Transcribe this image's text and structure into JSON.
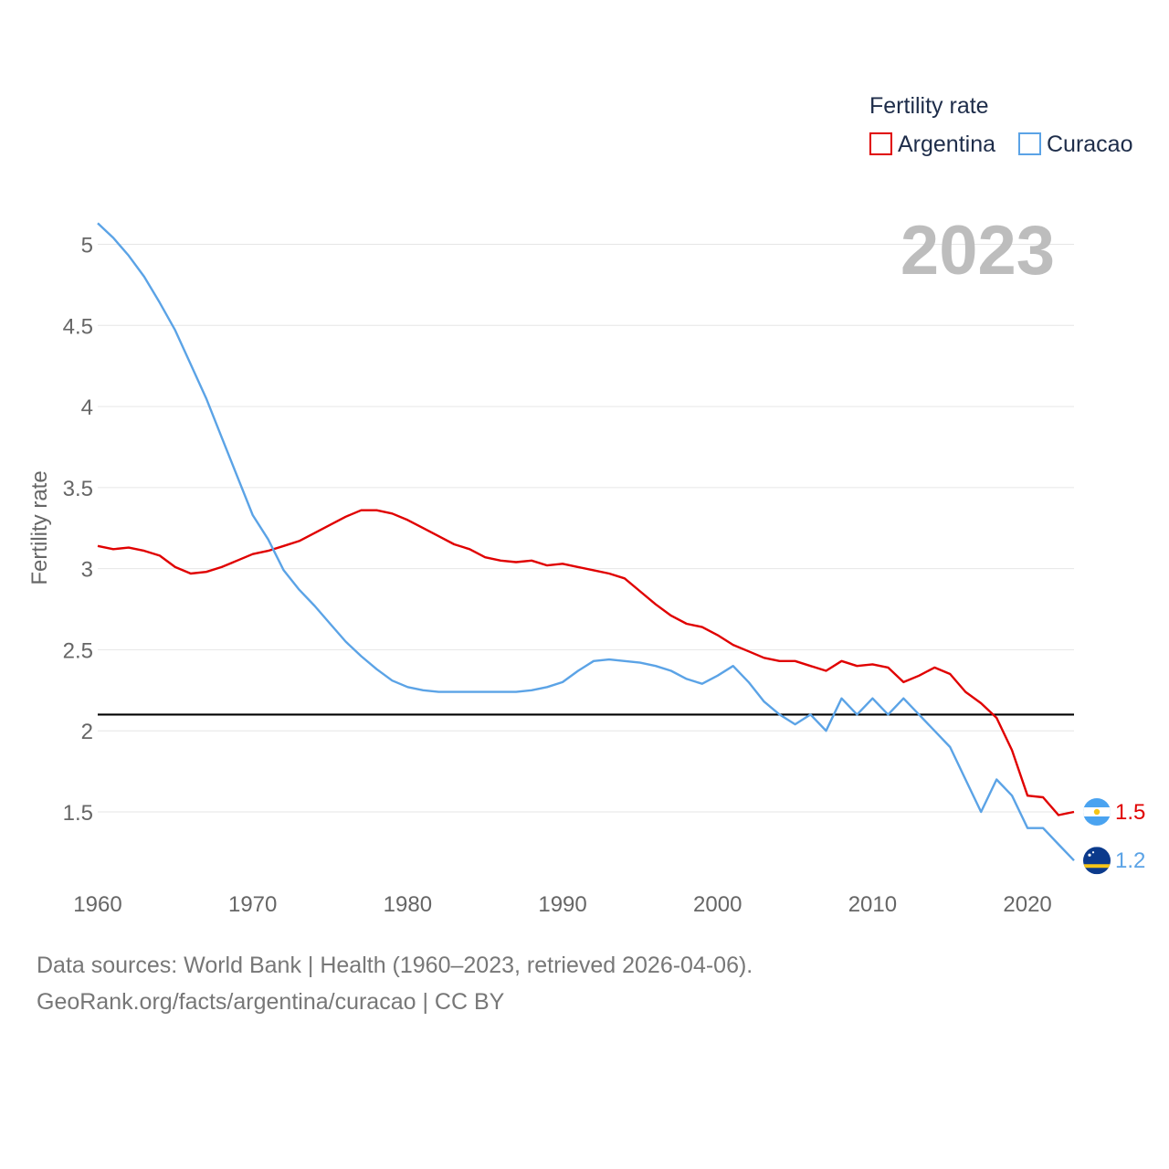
{
  "chart_data": {
    "type": "line",
    "title": "",
    "year_label": "2023",
    "legend_title": "Fertility rate",
    "ylabel": "Fertility rate",
    "xlabel": "",
    "xlim": [
      1960,
      2023
    ],
    "ylim": [
      1.1,
      5.2
    ],
    "y_ticks": [
      1.5,
      2,
      2.5,
      3,
      3.5,
      4,
      4.5,
      5
    ],
    "y_tick_labels": [
      "1.5",
      "2",
      "2.5",
      "3",
      "3.5",
      "4",
      "4.5",
      "5"
    ],
    "x_ticks": [
      1960,
      1970,
      1980,
      1990,
      2000,
      2010,
      2020
    ],
    "x_tick_labels": [
      "1960",
      "1970",
      "1980",
      "1990",
      "2000",
      "2010",
      "2020"
    ],
    "reference_line": {
      "value": 2.1,
      "color": "#000000"
    },
    "x": [
      1960,
      1961,
      1962,
      1963,
      1964,
      1965,
      1966,
      1967,
      1968,
      1969,
      1970,
      1971,
      1972,
      1973,
      1974,
      1975,
      1976,
      1977,
      1978,
      1979,
      1980,
      1981,
      1982,
      1983,
      1984,
      1985,
      1986,
      1987,
      1988,
      1989,
      1990,
      1991,
      1992,
      1993,
      1994,
      1995,
      1996,
      1997,
      1998,
      1999,
      2000,
      2001,
      2002,
      2003,
      2004,
      2005,
      2006,
      2007,
      2008,
      2009,
      2010,
      2011,
      2012,
      2013,
      2014,
      2015,
      2016,
      2017,
      2018,
      2019,
      2020,
      2021,
      2022,
      2023
    ],
    "series": [
      {
        "name": "Argentina",
        "color": "#e00000",
        "end_label": "1.5",
        "flag": "argentina-flag",
        "values": [
          3.14,
          3.12,
          3.13,
          3.11,
          3.08,
          3.01,
          2.97,
          2.98,
          3.01,
          3.05,
          3.09,
          3.11,
          3.14,
          3.17,
          3.22,
          3.27,
          3.32,
          3.36,
          3.36,
          3.34,
          3.3,
          3.25,
          3.2,
          3.15,
          3.12,
          3.07,
          3.05,
          3.04,
          3.05,
          3.02,
          3.03,
          3.01,
          2.99,
          2.97,
          2.94,
          2.86,
          2.78,
          2.71,
          2.66,
          2.64,
          2.59,
          2.53,
          2.49,
          2.45,
          2.43,
          2.43,
          2.4,
          2.37,
          2.43,
          2.4,
          2.41,
          2.39,
          2.3,
          2.34,
          2.39,
          2.35,
          2.24,
          2.17,
          2.08,
          1.88,
          1.6,
          1.59,
          1.48,
          1.5
        ]
      },
      {
        "name": "Curacao",
        "color": "#5ba3e6",
        "end_label": "1.2",
        "flag": "curacao-flag",
        "values": [
          5.13,
          5.04,
          4.93,
          4.8,
          4.64,
          4.47,
          4.26,
          4.05,
          3.81,
          3.57,
          3.33,
          3.18,
          2.99,
          2.87,
          2.77,
          2.66,
          2.55,
          2.46,
          2.38,
          2.31,
          2.27,
          2.25,
          2.24,
          2.24,
          2.24,
          2.24,
          2.24,
          2.24,
          2.25,
          2.27,
          2.3,
          2.37,
          2.43,
          2.44,
          2.43,
          2.42,
          2.4,
          2.37,
          2.32,
          2.29,
          2.34,
          2.4,
          2.3,
          2.18,
          2.1,
          2.04,
          2.1,
          2.0,
          2.2,
          2.1,
          2.2,
          2.1,
          2.2,
          2.1,
          2.0,
          1.9,
          1.7,
          1.5,
          1.7,
          1.6,
          1.4,
          1.4,
          1.3,
          1.2
        ]
      }
    ]
  },
  "footer": {
    "line1": "Data sources: World Bank | Health (1960–2023, retrieved 2026-04-06).",
    "line2": "GeoRank.org/facts/argentina/curacao | CC BY"
  }
}
